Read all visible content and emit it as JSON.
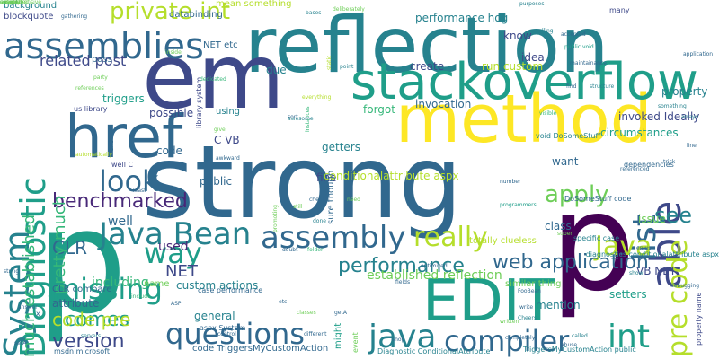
{
  "palette": {
    "background": "#ffffff",
    "dark_purple": "#440154",
    "indigo": "#482878",
    "slate_blue": "#3e4989",
    "blue": "#31688e",
    "teal_blue": "#26828e",
    "teal": "#1f9e89",
    "green": "#35b779",
    "light_green": "#6ece58",
    "lime": "#b5de2b",
    "yellow": "#fde725"
  },
  "words": [
    {
      "text": "strong",
      "color": "#31688e"
    },
    {
      "text": "p",
      "color": "#1f9e89"
    },
    {
      "text": "p",
      "color": "#440154"
    },
    {
      "text": "reflection",
      "color": "#26828e"
    },
    {
      "text": "em",
      "color": "#3e4989"
    },
    {
      "text": "method",
      "color": "#fde725"
    },
    {
      "text": "stackoverflow",
      "color": "#1f9e89"
    },
    {
      "text": "href",
      "color": "#31688e"
    },
    {
      "text": "EDIT",
      "color": "#1f9e89"
    },
    {
      "text": "assemblies",
      "color": "#31688e"
    },
    {
      "text": "Diagnostic",
      "color": "#1f9e89"
    },
    {
      "text": "System",
      "color": "#26828e"
    },
    {
      "text": "Java Bean",
      "color": "#26828e"
    },
    {
      "text": "assembly",
      "color": "#31688e"
    },
    {
      "text": "able",
      "color": "#3e4989"
    },
    {
      "text": "pre code",
      "color": "#b5de2b"
    },
    {
      "text": "list",
      "color": "#31688e"
    },
    {
      "text": "questions",
      "color": "#31688e"
    },
    {
      "text": "java",
      "color": "#26828e"
    },
    {
      "text": "compiler",
      "color": "#31688e"
    },
    {
      "text": "missing",
      "color": "#1f9e89"
    },
    {
      "text": "way",
      "color": "#1f9e89"
    },
    {
      "text": "look",
      "color": "#31688e"
    },
    {
      "text": "really",
      "color": "#b5de2b"
    },
    {
      "text": "see",
      "color": "#26828e"
    },
    {
      "text": "apply",
      "color": "#6ece58"
    },
    {
      "text": "Java",
      "color": "#b5de2b"
    },
    {
      "text": "int",
      "color": "#1f9e89"
    },
    {
      "text": "web application",
      "color": "#31688e"
    },
    {
      "text": "performance",
      "color": "#26828e"
    },
    {
      "text": "comes",
      "color": "#1f9e89"
    },
    {
      "text": "version",
      "color": "#3e4989"
    },
    {
      "text": "code pre",
      "color": "#b5de2b"
    },
    {
      "text": "private int",
      "color": "#b5de2b"
    },
    {
      "text": "benchmarked",
      "color": "#482878"
    },
    {
      "text": "CLR",
      "color": "#31688e"
    },
    {
      "text": "NET",
      "color": "#3e4989"
    },
    {
      "text": "much established",
      "color": "#35b779"
    },
    {
      "text": "pretty much",
      "color": "#35b779"
    },
    {
      "text": "related post",
      "color": "#3e4989"
    },
    {
      "text": "used",
      "color": "#482878"
    },
    {
      "text": "well",
      "color": "#31688e"
    },
    {
      "text": "including",
      "color": "#35b779"
    },
    {
      "text": "established reflection",
      "color": "#6ece58"
    },
    {
      "text": "custom actions",
      "color": "#26828e"
    },
    {
      "text": "general",
      "color": "#26828e"
    },
    {
      "text": "run custom",
      "color": "#b5de2b"
    },
    {
      "text": "invocation",
      "color": "#31688e"
    },
    {
      "text": "invoked Ideally",
      "color": "#3e4989"
    },
    {
      "text": "circumstances",
      "color": "#1f9e89"
    },
    {
      "text": "property",
      "color": "#26828e"
    },
    {
      "text": "create",
      "color": "#3e4989"
    },
    {
      "text": "forgot",
      "color": "#35b779"
    },
    {
      "text": "getters",
      "color": "#26828e"
    },
    {
      "text": "fine",
      "color": "#3e4989"
    },
    {
      "text": "want",
      "color": "#31688e"
    },
    {
      "text": "class",
      "color": "#31688e"
    },
    {
      "text": "mention",
      "color": "#26828e"
    },
    {
      "text": "setters",
      "color": "#1f9e89"
    },
    {
      "text": "VB NET",
      "color": "#3e4989"
    },
    {
      "text": "issue",
      "color": "#6ece58"
    },
    {
      "text": "possible",
      "color": "#3e4989"
    },
    {
      "text": "using",
      "color": "#26828e"
    },
    {
      "text": "C VB",
      "color": "#3e4989"
    },
    {
      "text": "code",
      "color": "#31688e"
    },
    {
      "text": "public",
      "color": "#31688e"
    },
    {
      "text": "mean something",
      "color": "#b5de2b"
    },
    {
      "text": "performance hog",
      "color": "#26828e"
    },
    {
      "text": "idea",
      "color": "#3e4989"
    },
    {
      "text": "know",
      "color": "#3e4989"
    },
    {
      "text": "due",
      "color": "#26828e"
    },
    {
      "text": "background",
      "color": "#26828e"
    },
    {
      "text": "blockquote",
      "color": "#3e4989"
    },
    {
      "text": "pass",
      "color": "#31688e"
    },
    {
      "text": "triggers",
      "color": "#1f9e89"
    },
    {
      "text": "NET etc",
      "color": "#31688e"
    },
    {
      "text": "databinding",
      "color": "#31688e"
    },
    {
      "text": "attribute",
      "color": "#31688e"
    },
    {
      "text": "CLR compare",
      "color": "#31688e"
    },
    {
      "text": "code TriggersMyCustomAction",
      "color": "#31688e"
    },
    {
      "text": "aspx System",
      "color": "#31688e"
    },
    {
      "text": "name",
      "color": "#6ece58"
    },
    {
      "text": "msdn microsoft",
      "color": "#31688e"
    },
    {
      "text": "DoSomeStuff code",
      "color": "#31688e"
    },
    {
      "text": "void DoSomeStuff",
      "color": "#26828e"
    },
    {
      "text": "Diagnostic ConditionalAttribute",
      "color": "#26828e"
    },
    {
      "text": "TriggersMyCustomAction public",
      "color": "#26828e"
    },
    {
      "text": "might",
      "color": "#1f9e89"
    },
    {
      "text": "similar thing",
      "color": "#6ece58"
    },
    {
      "text": "totally clueless",
      "color": "#b5de2b"
    },
    {
      "text": "specific case",
      "color": "#26828e"
    },
    {
      "text": "library system",
      "color": "#3e4989"
    },
    {
      "text": "case performance",
      "color": "#31688e"
    },
    {
      "text": "property name",
      "color": "#3e4989"
    },
    {
      "text": "diagnostics conditionalattribute aspx",
      "color": "#26828e"
    },
    {
      "text": "event",
      "color": "#6ece58"
    },
    {
      "text": "many",
      "color": "#3e4989"
    },
    {
      "text": "conditionalattribute aspx",
      "color": "#b5de2b"
    },
    {
      "text": "sure though",
      "color": "#31688e"
    },
    {
      "text": "x",
      "color": "#31688e"
    },
    {
      "text": "well C",
      "color": "#3e4989"
    },
    {
      "text": "us library",
      "color": "#3e4989"
    },
    {
      "text": "public void",
      "color": "#1f9e89"
    },
    {
      "text": "dependencies",
      "color": "#31688e"
    },
    {
      "text": "something",
      "color": "#26828e"
    },
    {
      "text": "application",
      "color": "#31688e"
    },
    {
      "text": "maintainance",
      "color": "#31688e"
    },
    {
      "text": "purposes",
      "color": "#26828e"
    },
    {
      "text": "calling",
      "color": "#26828e"
    },
    {
      "text": "accepted",
      "color": "#31688e"
    },
    {
      "text": "party",
      "color": "#6ece58"
    },
    {
      "text": "dedicated",
      "color": "#35b779"
    },
    {
      "text": "inside",
      "color": "#6ece58"
    },
    {
      "text": "instances",
      "color": "#35b779"
    },
    {
      "text": "awesome",
      "color": "#26828e"
    },
    {
      "text": "sort",
      "color": "#31688e"
    },
    {
      "text": "everything",
      "color": "#b5de2b"
    },
    {
      "text": "programmers",
      "color": "#1f9e89"
    },
    {
      "text": "number",
      "color": "#31688e"
    },
    {
      "text": "need",
      "color": "#6ece58"
    },
    {
      "text": "check",
      "color": "#31688e"
    },
    {
      "text": "line",
      "color": "#31688e"
    },
    {
      "text": "trick",
      "color": "#31688e"
    },
    {
      "text": "super",
      "color": "#6ece58"
    },
    {
      "text": "find",
      "color": "#31688e"
    },
    {
      "text": "arrays",
      "color": "#26828e"
    },
    {
      "text": "structure",
      "color": "#26828e"
    },
    {
      "text": "referenced",
      "color": "#31688e"
    },
    {
      "text": "automatically",
      "color": "#b5de2b"
    },
    {
      "text": "references",
      "color": "#6ece58"
    },
    {
      "text": "least",
      "color": "#31688e"
    },
    {
      "text": "include",
      "color": "#35b779"
    },
    {
      "text": "etc",
      "color": "#31688e"
    },
    {
      "text": "classes",
      "color": "#6ece58"
    },
    {
      "text": "fields",
      "color": "#31688e"
    },
    {
      "text": "FooBean",
      "color": "#31688e"
    },
    {
      "text": "write",
      "color": "#31688e"
    },
    {
      "text": "Cheers",
      "color": "#26828e"
    },
    {
      "text": "called",
      "color": "#26828e"
    },
    {
      "text": "abuse",
      "color": "#31688e"
    },
    {
      "text": "answer",
      "color": "#31688e"
    },
    {
      "text": "string",
      "color": "#31688e"
    },
    {
      "text": "setA",
      "color": "#31688e"
    },
    {
      "text": "getA",
      "color": "#31688e"
    },
    {
      "text": "debugging",
      "color": "#31688e"
    },
    {
      "text": "shop",
      "color": "#31688e"
    },
    {
      "text": "completely",
      "color": "#31688e"
    },
    {
      "text": "ASP",
      "color": "#31688e"
    },
    {
      "text": "control",
      "color": "#31688e"
    },
    {
      "text": "doubt",
      "color": "#31688e"
    },
    {
      "text": "folder",
      "color": "#35b779"
    },
    {
      "text": "promoting",
      "color": "#6ece58"
    },
    {
      "text": "still",
      "color": "#6ece58"
    },
    {
      "text": "gathering",
      "color": "#31688e"
    },
    {
      "text": "bases",
      "color": "#26828e"
    },
    {
      "text": "deliberately",
      "color": "#6ece58"
    },
    {
      "text": "point",
      "color": "#26828e"
    },
    {
      "text": "static",
      "color": "#b5de2b"
    },
    {
      "text": "optimized",
      "color": "#31688e"
    },
    {
      "text": "visible",
      "color": "#35b779"
    },
    {
      "text": "different",
      "color": "#31688e"
    },
    {
      "text": "servers",
      "color": "#26828e"
    },
    {
      "text": "awkward",
      "color": "#31688e"
    },
    {
      "text": "give",
      "color": "#6ece58"
    },
    {
      "text": "done",
      "color": "#26828e"
    },
    {
      "text": "en us",
      "color": "#31688e"
    },
    {
      "text": "written",
      "color": "#6ece58"
    },
    {
      "text": "GAC",
      "color": "#31688e"
    },
    {
      "text": "show",
      "color": "#26828e"
    },
    {
      "text": "except",
      "color": "#26828e"
    },
    {
      "text": "simple",
      "color": "#6ece58"
    },
    {
      "text": "comprehensive",
      "color": "#6ece58"
    },
    {
      "text": "entirely",
      "color": "#6ece58"
    },
    {
      "text": "associated",
      "color": "#6ece58"
    },
    {
      "text": "suspect",
      "color": "#6ece58"
    }
  ]
}
